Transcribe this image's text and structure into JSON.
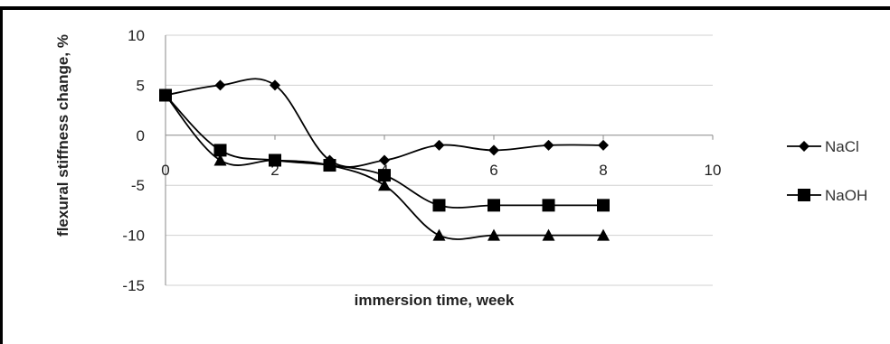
{
  "chart_data": {
    "type": "line",
    "xlabel": "immersion time, week",
    "ylabel": "flexural stiffness change, %",
    "xlim": [
      0,
      10
    ],
    "ylim": [
      -15,
      10
    ],
    "x_ticks": [
      0,
      2,
      4,
      6,
      8,
      10
    ],
    "y_ticks": [
      10,
      5,
      0,
      -5,
      -10,
      -15
    ],
    "grid": "horizontal",
    "legend_position": "right",
    "series": [
      {
        "name": "NaCl",
        "marker": "diamond",
        "x": [
          0,
          1,
          2,
          3,
          4,
          5,
          6,
          7,
          8
        ],
        "y": [
          4,
          5,
          5,
          -2.5,
          -2.5,
          -1,
          -1.5,
          -1,
          -1
        ]
      },
      {
        "name": "NaOH",
        "marker": "square",
        "x": [
          0,
          1,
          2,
          3,
          4,
          5,
          6,
          7,
          8
        ],
        "y": [
          4,
          -1.5,
          -2.5,
          -3,
          -4,
          -7,
          -7,
          -7,
          -7
        ]
      },
      {
        "marker": "triangle",
        "x": [
          0,
          1,
          2,
          3,
          4,
          5,
          6,
          7,
          8
        ],
        "y": [
          4,
          -2.5,
          -2.5,
          -3,
          -5,
          -10,
          -10,
          -10,
          -10
        ]
      }
    ],
    "legend_labels": [
      "NaCl",
      "NaOH"
    ]
  },
  "colors": {
    "line": "#000000",
    "grid": "#d0d0d0",
    "axis": "#888888",
    "frame": "#000000"
  }
}
